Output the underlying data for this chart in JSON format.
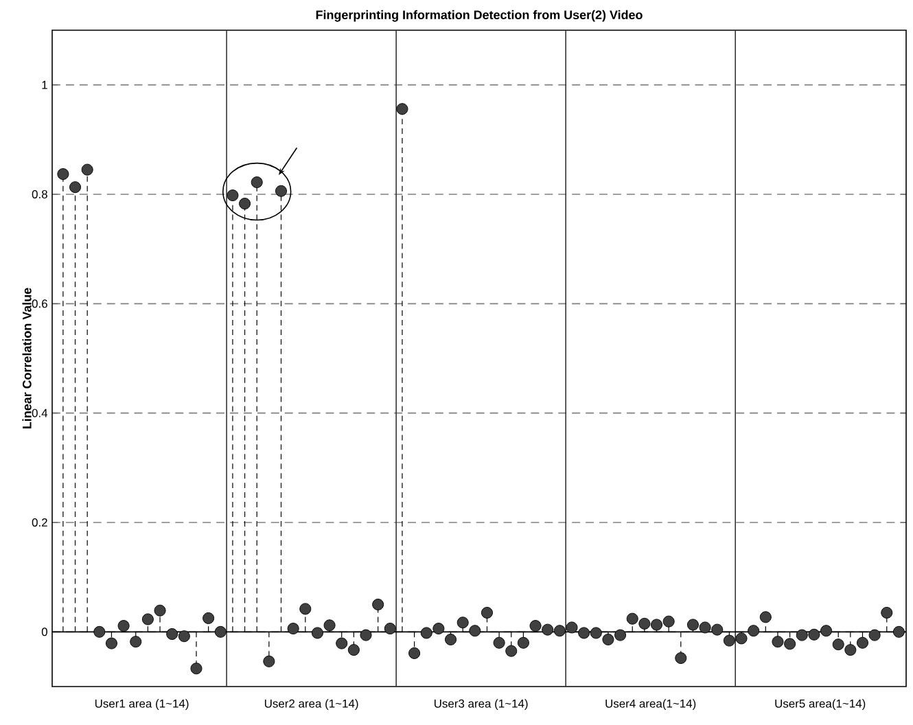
{
  "chart_data": {
    "type": "lollipop",
    "title": "Fingerprinting Information Detection from User(2) Video",
    "ylabel": "Linear Correlation Value",
    "categories": [
      null,
      null,
      null,
      null,
      null,
      null,
      null,
      null,
      null,
      null,
      null,
      null,
      null,
      null,
      null,
      null,
      null,
      null,
      null,
      null,
      null,
      null,
      null,
      null,
      null,
      null,
      null,
      null,
      null,
      null,
      null,
      null,
      null,
      null,
      null,
      null,
      null,
      null,
      null,
      null,
      null,
      null,
      null,
      null,
      null,
      null,
      null,
      null,
      null,
      null,
      null,
      null,
      null,
      null,
      null,
      null,
      null,
      null,
      null,
      null,
      null,
      null,
      null,
      null,
      null,
      null,
      null,
      null,
      null,
      null
    ],
    "series": [
      {
        "color": "#404040",
        "values": [
          0.837,
          0.813,
          0.845,
          0,
          -0.021,
          0.011,
          -0.018,
          0.023,
          0.039,
          -0.004,
          -0.008,
          -0.067,
          0.025,
          0,
          0.798,
          0.783,
          0.822,
          -0.054,
          0.806,
          0.006,
          0.042,
          -0.002,
          0.012,
          -0.021,
          -0.033,
          -0.006,
          0.05,
          0.006,
          0.956,
          -0.039,
          -0.002,
          0.006,
          -0.014,
          0.017,
          0.002,
          0.035,
          -0.02,
          -0.035,
          -0.02,
          0.011,
          0.004,
          0.002,
          0.008,
          -0.002,
          -0.002,
          -0.014,
          -0.006,
          0.024,
          0.015,
          0.013,
          0.019,
          -0.048,
          0.013,
          0.008,
          0.004,
          -0.016,
          -0.012,
          0.002,
          0.027,
          -0.018,
          -0.022,
          -0.006,
          -0.005,
          0.002,
          -0.023,
          -0.033,
          -0.02,
          -0.006,
          0.035,
          0
        ]
      }
    ],
    "ylim": [
      -0.1,
      1.1
    ],
    "annotations": [
      "User1 area (1~14)",
      "User2 area (1~14)",
      "User3 area (1~14)",
      "User4 area(1~14)",
      "User5 area(1~14)"
    ],
    "yticks": [
      0,
      0.2,
      0.4,
      0.6,
      0.8,
      1
    ],
    "grid": "y",
    "marker": "circle",
    "line_style": "dashed"
  }
}
